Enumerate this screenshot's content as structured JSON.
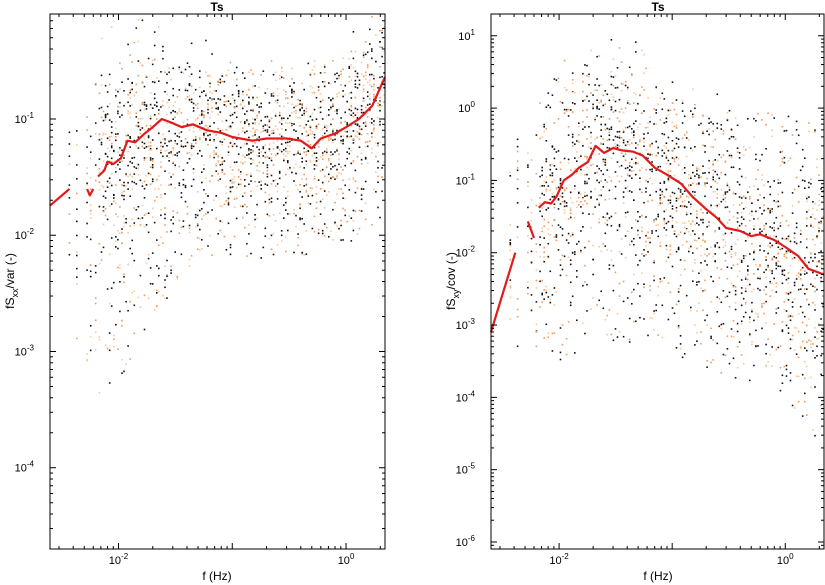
{
  "colors": {
    "median_line": "#e31a1c",
    "scatter_dark": "#111111",
    "scatter_orange": "#f39a5a",
    "scatter_light": "#f8c89c",
    "frame": "#000000"
  },
  "chart_data": [
    {
      "type": "scatter",
      "title": "Ts",
      "xlabel": "f (Hz)",
      "ylabel": {
        "main": "fS",
        "sub": "xx",
        "rest": "/var (-)"
      },
      "xscale": "log",
      "yscale": "log",
      "xlim": [
        0.0025,
        2.2
      ],
      "ylim": [
        2e-05,
        0.8
      ],
      "xticks": [
        {
          "value": 0.01,
          "base": "10",
          "exp": "-2"
        },
        {
          "value": 1,
          "base": "10",
          "exp": "0"
        }
      ],
      "yticks": [
        {
          "value": 0.0001,
          "base": "10",
          "exp": "-4"
        },
        {
          "value": 0.001,
          "base": "10",
          "exp": "-3"
        },
        {
          "value": 0.01,
          "base": "10",
          "exp": "-2"
        },
        {
          "value": 0.1,
          "base": "10",
          "exp": "-1"
        }
      ],
      "grid": false,
      "scatter_envelope": [
        {
          "f": 0.0025,
          "lo": 0.008,
          "hi": 0.05
        },
        {
          "f": 0.004,
          "lo": 0.0008,
          "hi": 0.1
        },
        {
          "f": 0.006,
          "lo": 0.0004,
          "hi": 0.2
        },
        {
          "f": 0.01,
          "lo": 0.0005,
          "hi": 0.35
        },
        {
          "f": 0.02,
          "lo": 0.002,
          "hi": 0.35
        },
        {
          "f": 0.05,
          "lo": 0.006,
          "hi": 0.3
        },
        {
          "f": 0.1,
          "lo": 0.006,
          "hi": 0.28
        },
        {
          "f": 0.3,
          "lo": 0.006,
          "hi": 0.25
        },
        {
          "f": 1,
          "lo": 0.008,
          "hi": 0.35
        },
        {
          "f": 2.2,
          "lo": 0.015,
          "hi": 0.7
        }
      ],
      "median": {
        "segments": [
          [
            [
              0.0025,
              0.018
            ],
            [
              0.0037,
              0.025
            ]
          ],
          [
            [
              0.0053,
              0.025
            ],
            [
              0.0056,
              0.022
            ],
            [
              0.006,
              0.025
            ]
          ],
          [
            [
              0.0066,
              0.032
            ],
            [
              0.0075,
              0.036
            ],
            [
              0.008,
              0.043
            ],
            [
              0.009,
              0.041
            ],
            [
              0.0105,
              0.046
            ],
            [
              0.012,
              0.065
            ],
            [
              0.014,
              0.063
            ],
            [
              0.017,
              0.075
            ],
            [
              0.02,
              0.085
            ],
            [
              0.024,
              0.1
            ],
            [
              0.03,
              0.092
            ],
            [
              0.036,
              0.085
            ],
            [
              0.045,
              0.09
            ],
            [
              0.06,
              0.08
            ],
            [
              0.08,
              0.076
            ],
            [
              0.1,
              0.07
            ],
            [
              0.15,
              0.065
            ],
            [
              0.2,
              0.068
            ],
            [
              0.3,
              0.068
            ],
            [
              0.4,
              0.065
            ],
            [
              0.5,
              0.056
            ],
            [
              0.6,
              0.068
            ],
            [
              0.8,
              0.075
            ],
            [
              1.0,
              0.085
            ],
            [
              1.3,
              0.1
            ],
            [
              1.7,
              0.13
            ],
            [
              2.2,
              0.23
            ]
          ]
        ]
      }
    },
    {
      "type": "scatter",
      "title": "Ts",
      "xlabel": "f (Hz)",
      "ylabel": {
        "main": "fS",
        "sub": "xy",
        "rest": "/cov (-)"
      },
      "xscale": "log",
      "yscale": "log",
      "xlim": [
        0.0025,
        2.2
      ],
      "ylim": [
        8e-07,
        20
      ],
      "xticks": [
        {
          "value": 0.01,
          "base": "10",
          "exp": "-2"
        },
        {
          "value": 1,
          "base": "10",
          "exp": "0"
        }
      ],
      "yticks": [
        {
          "value": 1e-06,
          "base": "10",
          "exp": "-6"
        },
        {
          "value": 1e-05,
          "base": "10",
          "exp": "-5"
        },
        {
          "value": 0.0001,
          "base": "10",
          "exp": "-4"
        },
        {
          "value": 0.001,
          "base": "10",
          "exp": "-3"
        },
        {
          "value": 0.01,
          "base": "10",
          "exp": "-2"
        },
        {
          "value": 0.1,
          "base": "10",
          "exp": "-1"
        },
        {
          "value": 1,
          "base": "10",
          "exp": "0"
        },
        {
          "value": 10,
          "base": "10",
          "exp": "1"
        }
      ],
      "grid": false,
      "scatter_envelope": [
        {
          "f": 0.0025,
          "lo": 0.0005,
          "hi": 0.002
        },
        {
          "f": 0.004,
          "lo": 0.0003,
          "hi": 0.3
        },
        {
          "f": 0.006,
          "lo": 0.0005,
          "hi": 1.0
        },
        {
          "f": 0.01,
          "lo": 0.0003,
          "hi": 3.0
        },
        {
          "f": 0.02,
          "lo": 0.0005,
          "hi": 4.0
        },
        {
          "f": 0.05,
          "lo": 0.0004,
          "hi": 3.0
        },
        {
          "f": 0.1,
          "lo": 0.0004,
          "hi": 1.5
        },
        {
          "f": 0.3,
          "lo": 0.0002,
          "hi": 1.0
        },
        {
          "f": 1,
          "lo": 0.0001,
          "hi": 0.8
        },
        {
          "f": 2.2,
          "lo": 2e-05,
          "hi": 0.6
        }
      ],
      "median": {
        "segments": [
          [
            [
              0.0025,
              0.0008
            ],
            [
              0.0041,
              0.01
            ]
          ],
          [
            [
              0.0053,
              0.027
            ],
            [
              0.006,
              0.016
            ]
          ],
          [
            [
              0.0066,
              0.042
            ],
            [
              0.0075,
              0.05
            ],
            [
              0.0085,
              0.048
            ],
            [
              0.0095,
              0.06
            ],
            [
              0.011,
              0.1
            ],
            [
              0.013,
              0.12
            ],
            [
              0.015,
              0.15
            ],
            [
              0.018,
              0.18
            ],
            [
              0.021,
              0.3
            ],
            [
              0.025,
              0.24
            ],
            [
              0.03,
              0.28
            ],
            [
              0.036,
              0.26
            ],
            [
              0.045,
              0.25
            ],
            [
              0.055,
              0.22
            ],
            [
              0.07,
              0.15
            ],
            [
              0.09,
              0.12
            ],
            [
              0.12,
              0.09
            ],
            [
              0.15,
              0.06
            ],
            [
              0.2,
              0.04
            ],
            [
              0.25,
              0.03
            ],
            [
              0.3,
              0.022
            ],
            [
              0.4,
              0.02
            ],
            [
              0.5,
              0.017
            ],
            [
              0.6,
              0.018
            ],
            [
              0.8,
              0.015
            ],
            [
              1.0,
              0.012
            ],
            [
              1.3,
              0.009
            ],
            [
              1.6,
              0.006
            ],
            [
              2.2,
              0.005
            ]
          ]
        ]
      }
    }
  ]
}
